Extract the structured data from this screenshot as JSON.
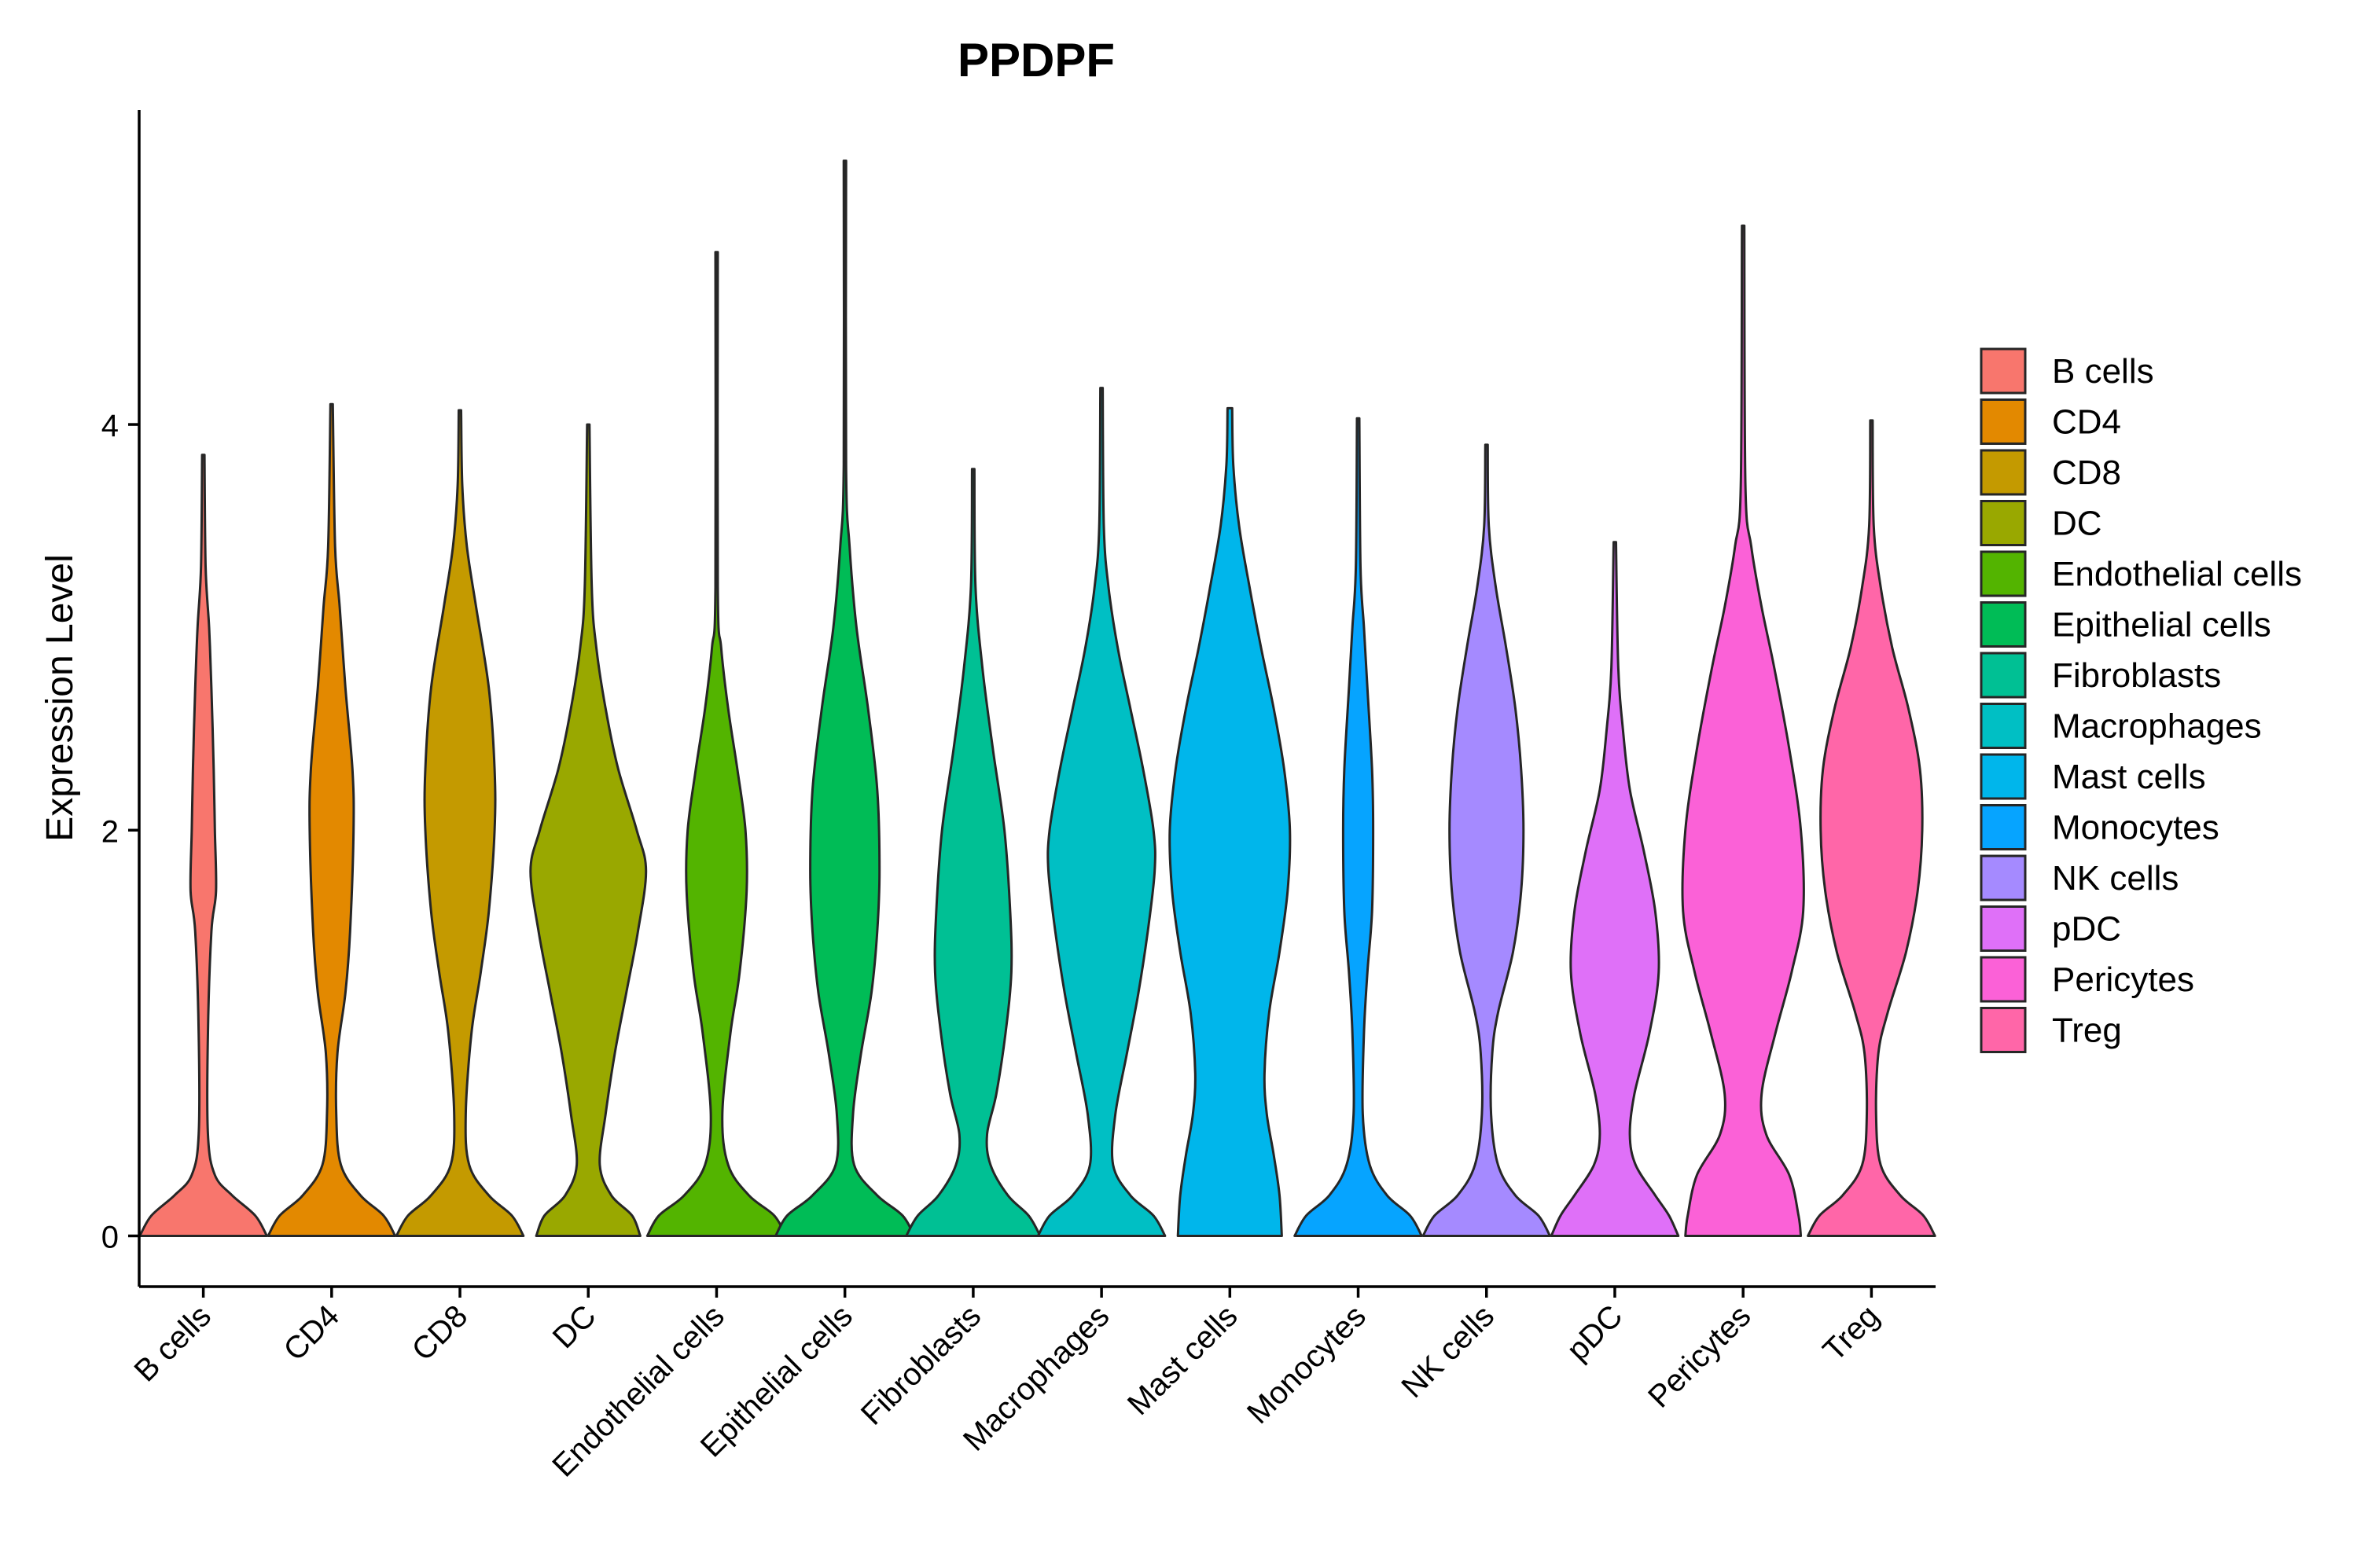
{
  "chart_data": {
    "type": "violin",
    "title": "PPDPF",
    "xlabel": "",
    "ylabel": "Expression Level",
    "ylim": [
      -0.25,
      5.55
    ],
    "yticks": [
      0,
      2,
      4
    ],
    "legend_position": "right",
    "categories": [
      "B cells",
      "CD4",
      "CD8",
      "DC",
      "Endothelial cells",
      "Epithelial cells",
      "Fibroblasts",
      "Macrophages",
      "Mast cells",
      "Monocytes",
      "NK cells",
      "pDC",
      "Pericytes",
      "Treg"
    ],
    "colors": [
      "#F8766D",
      "#E38900",
      "#C49A00",
      "#99A800",
      "#53B400",
      "#00BC56",
      "#00C094",
      "#00BFC4",
      "#00B6EB",
      "#06A4FF",
      "#A58AFF",
      "#DF70F8",
      "#FB61D7",
      "#FF66A8"
    ],
    "violins": [
      {
        "name": "B cells",
        "max": 3.85,
        "profile": [
          [
            0,
            0.55
          ],
          [
            0.1,
            0.45
          ],
          [
            0.2,
            0.25
          ],
          [
            0.3,
            0.1
          ],
          [
            0.5,
            0.04
          ],
          [
            1.0,
            0.04
          ],
          [
            1.5,
            0.07
          ],
          [
            1.7,
            0.11
          ],
          [
            2.0,
            0.1
          ],
          [
            2.3,
            0.09
          ],
          [
            2.7,
            0.07
          ],
          [
            3.0,
            0.05
          ],
          [
            3.3,
            0.02
          ],
          [
            3.85,
            0.01
          ]
        ]
      },
      {
        "name": "CD4",
        "max": 4.1,
        "profile": [
          [
            0,
            0.55
          ],
          [
            0.1,
            0.45
          ],
          [
            0.2,
            0.25
          ],
          [
            0.35,
            0.08
          ],
          [
            0.6,
            0.04
          ],
          [
            0.9,
            0.05
          ],
          [
            1.2,
            0.12
          ],
          [
            1.5,
            0.16
          ],
          [
            2.0,
            0.19
          ],
          [
            2.3,
            0.18
          ],
          [
            2.7,
            0.12
          ],
          [
            3.1,
            0.07
          ],
          [
            3.4,
            0.03
          ],
          [
            4.1,
            0.01
          ]
        ]
      },
      {
        "name": "CD8",
        "max": 4.07,
        "profile": [
          [
            0,
            0.55
          ],
          [
            0.1,
            0.45
          ],
          [
            0.2,
            0.25
          ],
          [
            0.35,
            0.08
          ],
          [
            0.6,
            0.05
          ],
          [
            1.0,
            0.1
          ],
          [
            1.3,
            0.18
          ],
          [
            1.6,
            0.25
          ],
          [
            2.0,
            0.3
          ],
          [
            2.3,
            0.3
          ],
          [
            2.7,
            0.25
          ],
          [
            3.1,
            0.14
          ],
          [
            3.4,
            0.06
          ],
          [
            3.7,
            0.02
          ],
          [
            4.07,
            0.01
          ]
        ]
      },
      {
        "name": "DC",
        "max": 4.0,
        "profile": [
          [
            0,
            0.45
          ],
          [
            0.1,
            0.38
          ],
          [
            0.2,
            0.2
          ],
          [
            0.35,
            0.1
          ],
          [
            0.6,
            0.15
          ],
          [
            0.9,
            0.23
          ],
          [
            1.2,
            0.33
          ],
          [
            1.5,
            0.43
          ],
          [
            1.8,
            0.5
          ],
          [
            2.0,
            0.42
          ],
          [
            2.3,
            0.26
          ],
          [
            2.6,
            0.15
          ],
          [
            2.9,
            0.07
          ],
          [
            3.2,
            0.03
          ],
          [
            4.0,
            0.01
          ]
        ]
      },
      {
        "name": "Endothelial cells",
        "max": 4.85,
        "profile": [
          [
            0,
            0.6
          ],
          [
            0.1,
            0.5
          ],
          [
            0.2,
            0.28
          ],
          [
            0.35,
            0.1
          ],
          [
            0.6,
            0.05
          ],
          [
            1.0,
            0.12
          ],
          [
            1.3,
            0.2
          ],
          [
            1.7,
            0.26
          ],
          [
            2.0,
            0.25
          ],
          [
            2.3,
            0.18
          ],
          [
            2.6,
            0.1
          ],
          [
            2.9,
            0.04
          ],
          [
            3.2,
            0.01
          ],
          [
            4.85,
            0.005
          ]
        ]
      },
      {
        "name": "Epithelial cells",
        "max": 5.3,
        "profile": [
          [
            0,
            0.6
          ],
          [
            0.1,
            0.5
          ],
          [
            0.2,
            0.28
          ],
          [
            0.35,
            0.08
          ],
          [
            0.6,
            0.07
          ],
          [
            0.9,
            0.14
          ],
          [
            1.2,
            0.23
          ],
          [
            1.5,
            0.28
          ],
          [
            1.8,
            0.3
          ],
          [
            2.2,
            0.28
          ],
          [
            2.6,
            0.2
          ],
          [
            3.0,
            0.1
          ],
          [
            3.4,
            0.04
          ],
          [
            3.8,
            0.01
          ],
          [
            5.3,
            0.005
          ]
        ]
      },
      {
        "name": "Fibroblasts",
        "max": 3.78,
        "profile": [
          [
            0,
            0.58
          ],
          [
            0.1,
            0.48
          ],
          [
            0.2,
            0.3
          ],
          [
            0.35,
            0.15
          ],
          [
            0.5,
            0.12
          ],
          [
            0.7,
            0.2
          ],
          [
            1.0,
            0.28
          ],
          [
            1.3,
            0.33
          ],
          [
            1.6,
            0.32
          ],
          [
            2.0,
            0.27
          ],
          [
            2.4,
            0.17
          ],
          [
            2.8,
            0.08
          ],
          [
            3.2,
            0.02
          ],
          [
            3.78,
            0.005
          ]
        ]
      },
      {
        "name": "Macrophages",
        "max": 4.18,
        "profile": [
          [
            0,
            0.55
          ],
          [
            0.1,
            0.45
          ],
          [
            0.2,
            0.25
          ],
          [
            0.35,
            0.1
          ],
          [
            0.6,
            0.12
          ],
          [
            0.9,
            0.22
          ],
          [
            1.2,
            0.32
          ],
          [
            1.5,
            0.4
          ],
          [
            1.8,
            0.46
          ],
          [
            2.0,
            0.45
          ],
          [
            2.3,
            0.36
          ],
          [
            2.6,
            0.25
          ],
          [
            2.9,
            0.14
          ],
          [
            3.2,
            0.06
          ],
          [
            3.5,
            0.02
          ],
          [
            4.18,
            0.005
          ]
        ]
      },
      {
        "name": "Mast cells",
        "max": 4.08,
        "profile": [
          [
            0,
            0.45
          ],
          [
            0.2,
            0.43
          ],
          [
            0.4,
            0.38
          ],
          [
            0.6,
            0.32
          ],
          [
            0.8,
            0.3
          ],
          [
            1.1,
            0.34
          ],
          [
            1.4,
            0.43
          ],
          [
            1.7,
            0.5
          ],
          [
            2.0,
            0.52
          ],
          [
            2.3,
            0.47
          ],
          [
            2.6,
            0.38
          ],
          [
            2.9,
            0.27
          ],
          [
            3.2,
            0.17
          ],
          [
            3.5,
            0.08
          ],
          [
            3.8,
            0.03
          ],
          [
            4.08,
            0.02
          ]
        ]
      },
      {
        "name": "Monocytes",
        "max": 4.03,
        "profile": [
          [
            0,
            0.55
          ],
          [
            0.1,
            0.45
          ],
          [
            0.2,
            0.25
          ],
          [
            0.35,
            0.1
          ],
          [
            0.6,
            0.04
          ],
          [
            1.0,
            0.05
          ],
          [
            1.3,
            0.08
          ],
          [
            1.6,
            0.12
          ],
          [
            2.0,
            0.13
          ],
          [
            2.3,
            0.12
          ],
          [
            2.7,
            0.08
          ],
          [
            3.0,
            0.05
          ],
          [
            3.3,
            0.02
          ],
          [
            4.03,
            0.005
          ]
        ]
      },
      {
        "name": "NK cells",
        "max": 3.9,
        "profile": [
          [
            0,
            0.55
          ],
          [
            0.1,
            0.45
          ],
          [
            0.2,
            0.25
          ],
          [
            0.35,
            0.1
          ],
          [
            0.6,
            0.04
          ],
          [
            0.9,
            0.05
          ],
          [
            1.1,
            0.1
          ],
          [
            1.4,
            0.23
          ],
          [
            1.7,
            0.3
          ],
          [
            2.0,
            0.32
          ],
          [
            2.3,
            0.3
          ],
          [
            2.6,
            0.25
          ],
          [
            2.9,
            0.17
          ],
          [
            3.2,
            0.08
          ],
          [
            3.5,
            0.02
          ],
          [
            3.9,
            0.005
          ]
        ]
      },
      {
        "name": "pDC",
        "max": 3.42,
        "profile": [
          [
            0,
            0.55
          ],
          [
            0.1,
            0.47
          ],
          [
            0.2,
            0.35
          ],
          [
            0.35,
            0.18
          ],
          [
            0.5,
            0.13
          ],
          [
            0.7,
            0.17
          ],
          [
            1.0,
            0.3
          ],
          [
            1.3,
            0.38
          ],
          [
            1.6,
            0.35
          ],
          [
            1.9,
            0.25
          ],
          [
            2.2,
            0.13
          ],
          [
            2.5,
            0.07
          ],
          [
            2.8,
            0.03
          ],
          [
            3.42,
            0.005
          ]
        ]
      },
      {
        "name": "Pericytes",
        "max": 4.98,
        "profile": [
          [
            0,
            0.5
          ],
          [
            0.1,
            0.48
          ],
          [
            0.3,
            0.4
          ],
          [
            0.5,
            0.2
          ],
          [
            0.7,
            0.16
          ],
          [
            1.0,
            0.28
          ],
          [
            1.3,
            0.42
          ],
          [
            1.6,
            0.52
          ],
          [
            2.0,
            0.5
          ],
          [
            2.4,
            0.4
          ],
          [
            2.8,
            0.27
          ],
          [
            3.1,
            0.16
          ],
          [
            3.4,
            0.07
          ],
          [
            3.7,
            0.02
          ],
          [
            4.98,
            0.005
          ]
        ]
      },
      {
        "name": "Treg",
        "max": 4.02,
        "profile": [
          [
            0,
            0.55
          ],
          [
            0.1,
            0.45
          ],
          [
            0.2,
            0.25
          ],
          [
            0.35,
            0.08
          ],
          [
            0.6,
            0.04
          ],
          [
            0.9,
            0.06
          ],
          [
            1.1,
            0.14
          ],
          [
            1.4,
            0.3
          ],
          [
            1.7,
            0.4
          ],
          [
            2.0,
            0.44
          ],
          [
            2.3,
            0.42
          ],
          [
            2.6,
            0.32
          ],
          [
            2.9,
            0.18
          ],
          [
            3.2,
            0.08
          ],
          [
            3.5,
            0.02
          ],
          [
            4.02,
            0.005
          ]
        ]
      }
    ]
  }
}
